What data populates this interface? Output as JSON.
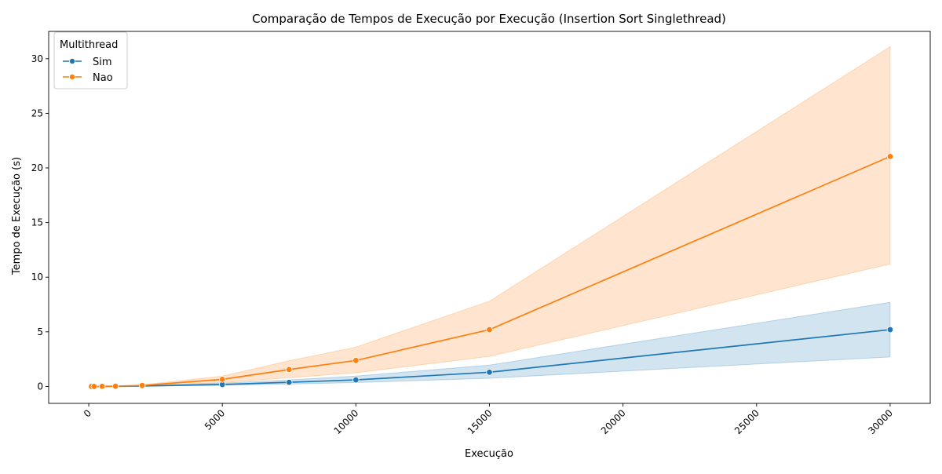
{
  "chart_data": {
    "type": "line",
    "title": "Comparação de Tempos de Execução por Execução (Insertion Sort Singlethread)",
    "xlabel": "Execução",
    "ylabel": "Tempo de Execução (s)",
    "xlim": [
      -1500,
      31500
    ],
    "ylim": [
      -1.55,
      32.5
    ],
    "x_ticks": [
      0,
      5000,
      10000,
      15000,
      20000,
      25000,
      30000
    ],
    "y_ticks": [
      0,
      5,
      10,
      15,
      20,
      25,
      30
    ],
    "x_tick_rotation": 45,
    "grid": false,
    "legend": {
      "title": "Multithread",
      "placement": "top-left"
    },
    "x": [
      100,
      200,
      500,
      1000,
      2000,
      5000,
      7500,
      10000,
      15000,
      30000
    ],
    "series": [
      {
        "name": "Sim",
        "color": "#1f77b4",
        "marker": "circle",
        "values": [
          0.0,
          0.0,
          0.0,
          0.01,
          0.04,
          0.18,
          0.38,
          0.6,
          1.3,
          5.2
        ],
        "ci_lower": [
          0.0,
          0.0,
          0.0,
          0.0,
          0.02,
          0.1,
          0.22,
          0.35,
          0.75,
          2.7
        ],
        "ci_upper": [
          0.0,
          0.0,
          0.01,
          0.02,
          0.07,
          0.3,
          0.6,
          0.95,
          1.95,
          7.7
        ]
      },
      {
        "name": "Nao",
        "color": "#ff7f0e",
        "marker": "circle",
        "values": [
          0.0,
          0.0,
          0.01,
          0.02,
          0.09,
          0.65,
          1.55,
          2.38,
          5.2,
          21.05
        ],
        "ci_lower": [
          0.0,
          0.0,
          0.0,
          0.01,
          0.05,
          0.35,
          0.8,
          1.25,
          2.75,
          11.2
        ],
        "ci_upper": [
          0.0,
          0.01,
          0.02,
          0.04,
          0.15,
          0.95,
          2.35,
          3.6,
          7.8,
          31.1
        ]
      }
    ]
  }
}
